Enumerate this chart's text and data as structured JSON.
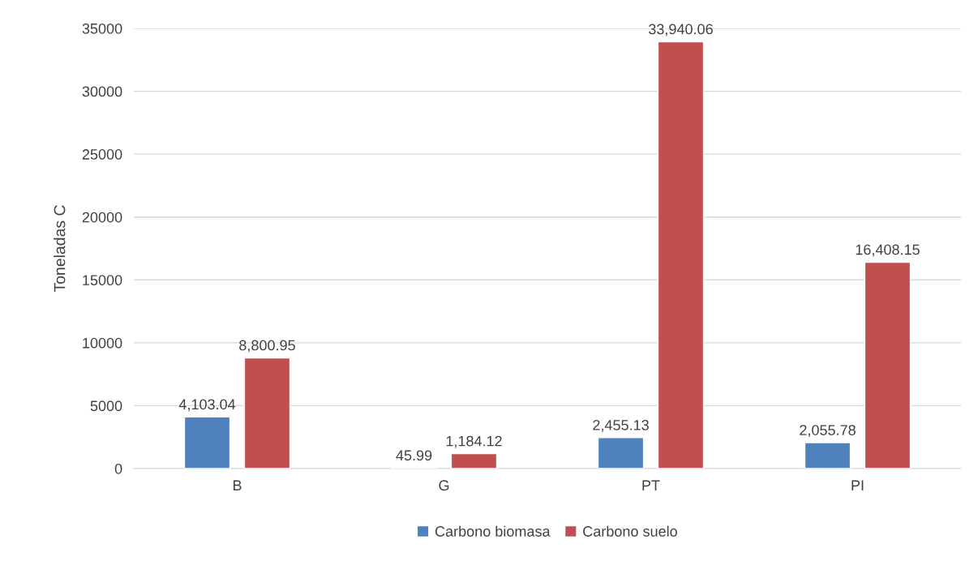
{
  "chart_data": {
    "type": "bar",
    "ylabel": "Toneladas C",
    "categories": [
      "B",
      "G",
      "PT",
      "PI"
    ],
    "series": [
      {
        "name": "Carbono biomasa",
        "color": "#4f81bd",
        "values": [
          4103.04,
          45.99,
          2455.13,
          2055.78
        ],
        "value_labels": [
          "4,103.04",
          "45.99",
          "2,455.13",
          "2,055.78"
        ]
      },
      {
        "name": "Carbono suelo",
        "color": "#c0504d",
        "values": [
          8800.95,
          1184.12,
          33940.06,
          16408.15
        ],
        "value_labels": [
          "8,800.95",
          "1,184.12",
          "33,940.06",
          "16,408.15"
        ]
      }
    ],
    "ylim": [
      0,
      35000
    ],
    "yticks": [
      0,
      5000,
      10000,
      15000,
      20000,
      25000,
      30000,
      35000
    ],
    "grid": "y",
    "legend": "bottom"
  }
}
